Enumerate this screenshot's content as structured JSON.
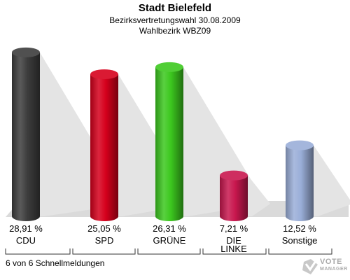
{
  "header": {
    "title": "Stadt Bielefeld",
    "subtitle": "Bezirksvertretungswahl 30.08.2009",
    "district": "Wahlbezirk WBZ09"
  },
  "footnote": "6 von 6 Schnellmeldungen",
  "logo": {
    "line1": "VOTE",
    "line2": "MANAGER"
  },
  "chart_data": {
    "type": "bar",
    "title": "Stadt Bielefeld",
    "categories": [
      "CDU",
      "SPD",
      "GRÜNE",
      "DIE LINKE",
      "Sonstige"
    ],
    "category_lines": [
      [
        "CDU"
      ],
      [
        "SPD"
      ],
      [
        "GRÜNE"
      ],
      [
        "DIE",
        "LINKE"
      ],
      [
        "Sonstige"
      ]
    ],
    "values": [
      28.91,
      25.05,
      26.31,
      7.21,
      12.52
    ],
    "value_labels": [
      "28,91 %",
      "25,05 %",
      "26,31 %",
      "7,21 %",
      "12,52 %"
    ],
    "colors": [
      "#3d3d3d",
      "#d6001c",
      "#3cc81e",
      "#c8174e",
      "#9aaed8"
    ],
    "ylim": [
      0,
      30
    ],
    "grid": false,
    "legend": "none"
  }
}
